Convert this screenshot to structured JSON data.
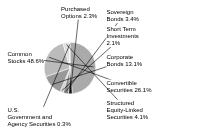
{
  "chart_data": {
    "type": "pie",
    "categories": [
      "Common\nStocks 48.6%",
      "Purchased\nOptions 2.3%",
      "Sovereign\nBonds 3.4%",
      "Short Term\nInvestments\n2.1%",
      "Corporate\nBonds 13.1%",
      "Convertible\nSecurities 26.1%",
      "Structured\nEquity-Linked\nSecurities 4.1%",
      "U.S.\nGovernment and\nAgency Securities 0.3%"
    ],
    "values": [
      48.6,
      2.3,
      3.4,
      2.1,
      13.1,
      26.1,
      4.1,
      0.3
    ],
    "colors": [
      "#aaaaaa",
      "#1a1a1a",
      "#888888",
      "#cccccc",
      "#999999",
      "#bbbbbb",
      "#e0e0e0",
      "#f0f0f0"
    ]
  }
}
